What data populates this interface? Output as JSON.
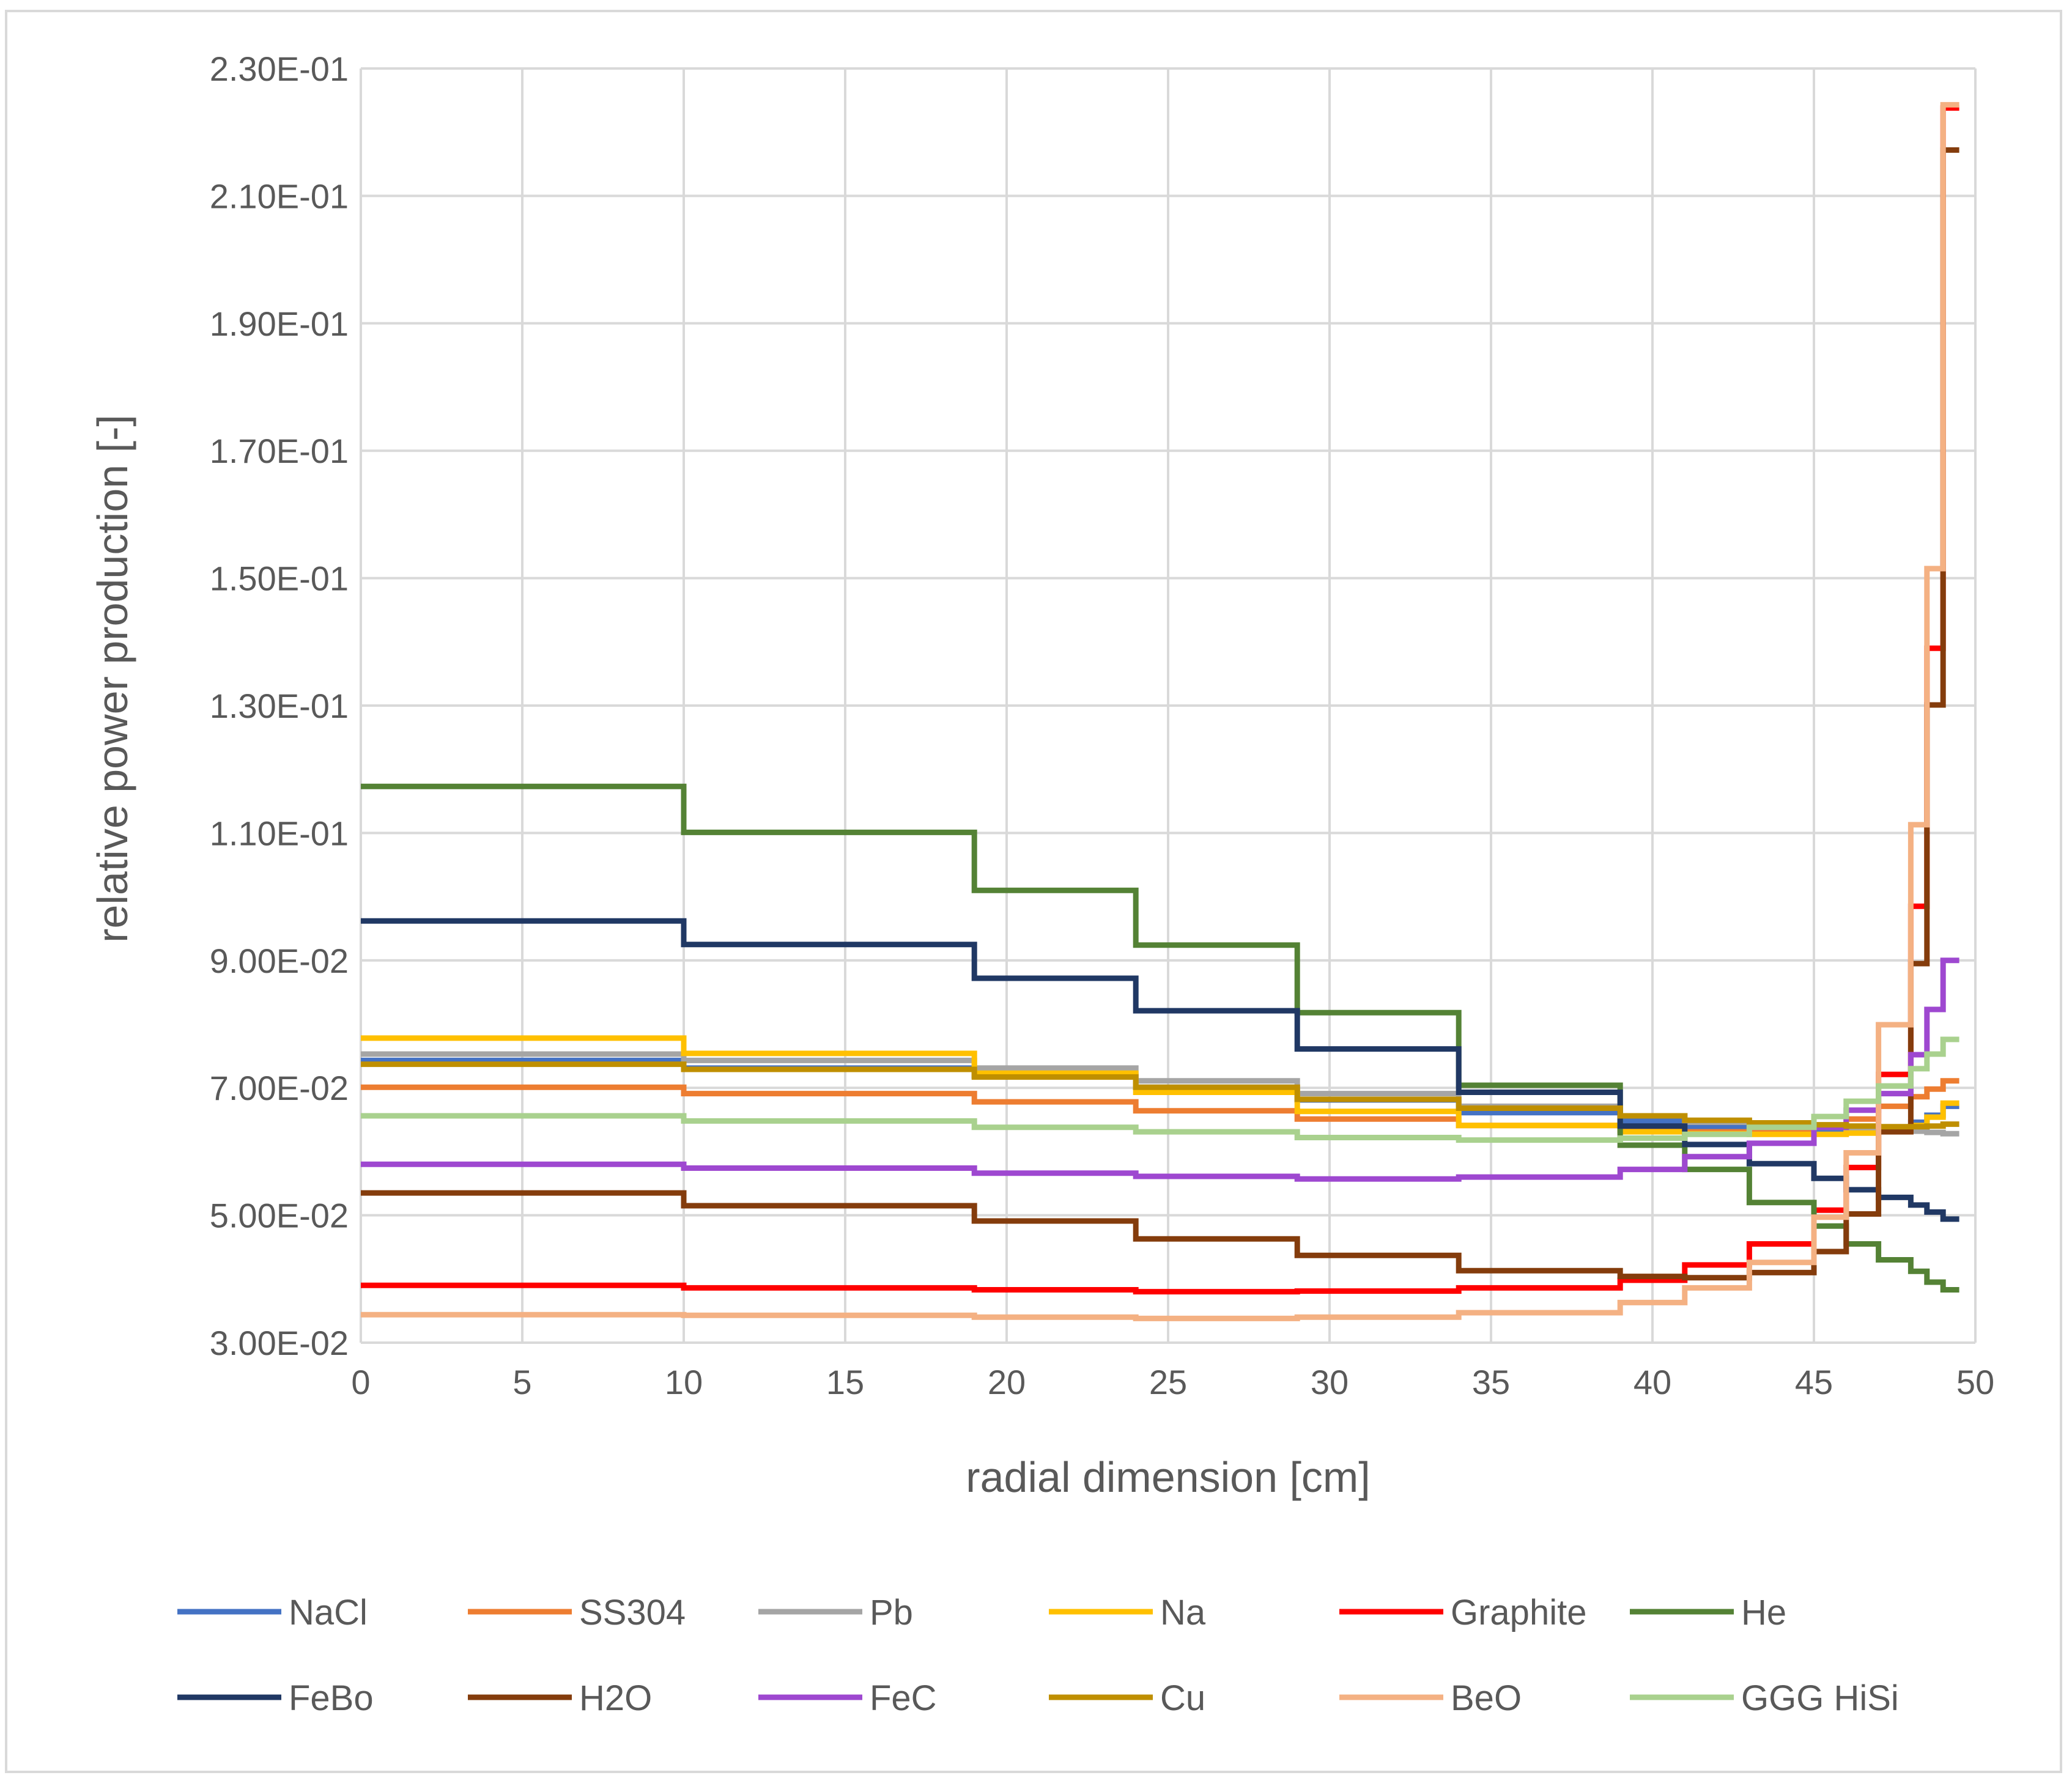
{
  "chart_data": {
    "type": "line",
    "title": "",
    "xlabel": "radial dimension [cm]",
    "ylabel": "relative power production [-]",
    "xlim": [
      0,
      50
    ],
    "ylim": [
      0.03,
      0.23
    ],
    "x_ticks": [
      0,
      5,
      10,
      15,
      20,
      25,
      30,
      35,
      40,
      45,
      50
    ],
    "x_tick_labels": [
      "0",
      "5",
      "10",
      "15",
      "20",
      "25",
      "30",
      "35",
      "40",
      "45",
      "50"
    ],
    "y_ticks": [
      0.03,
      0.05,
      0.07,
      0.09,
      0.11,
      0.13,
      0.15,
      0.17,
      0.19,
      0.21,
      0.23
    ],
    "y_tick_labels": [
      "3.00E-02",
      "5.00E-02",
      "7.00E-02",
      "9.00E-02",
      "1.10E-01",
      "1.30E-01",
      "1.50E-01",
      "1.70E-01",
      "1.90E-01",
      "2.10E-01",
      "2.30E-01"
    ],
    "grid": true,
    "legend_position": "bottom",
    "step_edges": [
      0,
      10,
      19,
      24,
      29,
      34,
      39,
      41,
      43,
      45,
      46,
      47,
      48,
      48.5,
      49,
      49.5
    ],
    "series": [
      {
        "name": "NaCl",
        "color": "#4472C4",
        "values": [
          0.0743,
          0.0731,
          0.0719,
          0.0701,
          0.0681,
          0.0661,
          0.0648,
          0.0638,
          0.0632,
          0.0631,
          0.0633,
          0.0638,
          0.0646,
          0.0657,
          0.0671
        ]
      },
      {
        "name": "SS304",
        "color": "#ED7D31",
        "values": [
          0.0701,
          0.0691,
          0.0678,
          0.0664,
          0.0651,
          0.0641,
          0.0634,
          0.0631,
          0.0632,
          0.0638,
          0.0651,
          0.0671,
          0.0686,
          0.0698,
          0.0711
        ]
      },
      {
        "name": "Pb",
        "color": "#A5A5A5",
        "values": [
          0.0753,
          0.0743,
          0.0731,
          0.0711,
          0.0691,
          0.0671,
          0.0656,
          0.0646,
          0.0641,
          0.0638,
          0.0636,
          0.0634,
          0.0632,
          0.063,
          0.0628
        ]
      },
      {
        "name": "Na",
        "color": "#FFC000",
        "values": [
          0.0778,
          0.0754,
          0.0723,
          0.0693,
          0.0663,
          0.0641,
          0.0631,
          0.0628,
          0.0627,
          0.0627,
          0.0629,
          0.0634,
          0.0641,
          0.0654,
          0.0676
        ]
      },
      {
        "name": "Graphite",
        "color": "#FF0000",
        "values": [
          0.039,
          0.0386,
          0.0383,
          0.038,
          0.0381,
          0.0386,
          0.0398,
          0.0422,
          0.0455,
          0.0508,
          0.0575,
          0.0721,
          0.0985,
          0.139,
          0.2238
        ]
      },
      {
        "name": "He",
        "color": "#548235",
        "values": [
          0.1173,
          0.1101,
          0.101,
          0.0924,
          0.0818,
          0.0704,
          0.061,
          0.0572,
          0.052,
          0.0483,
          0.0455,
          0.043,
          0.0412,
          0.0395,
          0.0383
        ]
      },
      {
        "name": "FeBo",
        "color": "#203864",
        "values": [
          0.0962,
          0.0925,
          0.0872,
          0.0821,
          0.0761,
          0.0693,
          0.064,
          0.0611,
          0.0581,
          0.0558,
          0.054,
          0.0528,
          0.0516,
          0.0505,
          0.0494
        ]
      },
      {
        "name": "H2O",
        "color": "#843C0C",
        "values": [
          0.0535,
          0.0515,
          0.0491,
          0.0463,
          0.0437,
          0.0413,
          0.0404,
          0.0402,
          0.041,
          0.0443,
          0.0502,
          0.0631,
          0.0895,
          0.1301,
          0.2172
        ]
      },
      {
        "name": "FeC",
        "color": "#9E48D0",
        "values": [
          0.058,
          0.0574,
          0.0566,
          0.0561,
          0.0557,
          0.056,
          0.0572,
          0.0592,
          0.0613,
          0.0638,
          0.0665,
          0.0691,
          0.0752,
          0.0823,
          0.09
        ]
      },
      {
        "name": "Cu",
        "color": "#BF8F00",
        "values": [
          0.0737,
          0.0729,
          0.0717,
          0.0701,
          0.0682,
          0.0668,
          0.0656,
          0.0649,
          0.0645,
          0.0642,
          0.064,
          0.0639,
          0.0639,
          0.064,
          0.0643
        ]
      },
      {
        "name": "BeO",
        "color": "#F4B183",
        "values": [
          0.0344,
          0.0343,
          0.034,
          0.0338,
          0.034,
          0.0347,
          0.0363,
          0.0386,
          0.0426,
          0.0497,
          0.0598,
          0.0799,
          0.1113,
          0.1515,
          0.2243
        ]
      },
      {
        "name": "GGG HiSi",
        "color": "#A9D18E",
        "values": [
          0.0656,
          0.0648,
          0.0638,
          0.0631,
          0.0622,
          0.0618,
          0.0621,
          0.0627,
          0.0638,
          0.0655,
          0.0679,
          0.0703,
          0.073,
          0.0753,
          0.0776
        ]
      }
    ]
  }
}
